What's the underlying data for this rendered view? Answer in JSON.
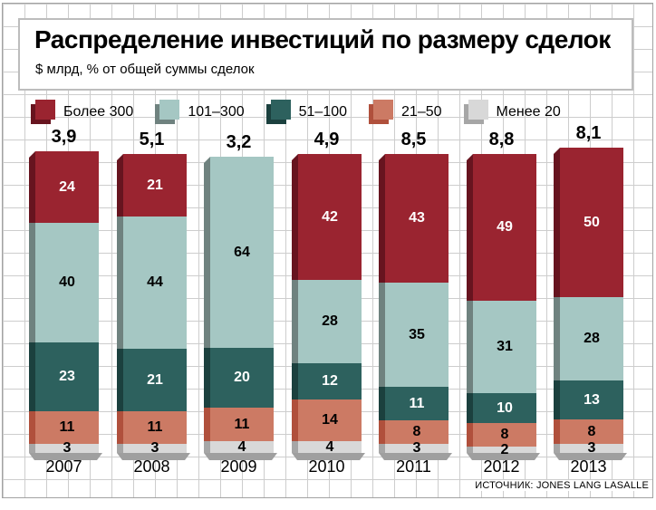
{
  "title": "Распределение инвестиций по размеру сделок",
  "subtitle": "$ млрд, % от общей суммы сделок",
  "source": "ИСТОЧНИК: JONES LANG LASALLE",
  "colors": {
    "grid_line": "#cdcdcd",
    "grid_border": "#a2a2a2",
    "flap_gray": "#9f9f9f",
    "title_box_border": "#bdbdbd"
  },
  "chart_data": {
    "type": "bar",
    "stacked": true,
    "title": "Распределение инвестиций по размеру сделок",
    "subtitle": "$ млрд, % от общей суммы сделок",
    "legend_position": "top",
    "grid": true,
    "categories": [
      "2007",
      "2008",
      "2009",
      "2010",
      "2011",
      "2012",
      "2013"
    ],
    "totals_billion_usd": [
      "3,9",
      "5,1",
      "3,2",
      "4,9",
      "8,5",
      "8,8",
      "8,1"
    ],
    "value_unit": "% от общей суммы сделок",
    "series": [
      {
        "name": "Более 300",
        "color": "#9a2430",
        "bevel": "#67141f",
        "text": "#ffffff",
        "values": [
          24,
          21,
          0,
          42,
          43,
          49,
          50
        ]
      },
      {
        "name": "101–300",
        "color": "#a5c7c3",
        "bevel": "#6f827f",
        "text": "#000000",
        "values": [
          40,
          44,
          64,
          28,
          35,
          31,
          28
        ]
      },
      {
        "name": "51–100",
        "color": "#2d615e",
        "bevel": "#1b403e",
        "text": "#ffffff",
        "values": [
          23,
          21,
          20,
          12,
          11,
          10,
          13
        ]
      },
      {
        "name": "21–50",
        "color": "#cc7a64",
        "bevel": "#b0503c",
        "text": "#000000",
        "values": [
          11,
          11,
          11,
          14,
          8,
          8,
          8
        ]
      },
      {
        "name": "Менее 20",
        "color": "#d8d8d8",
        "bevel": "#a6a6a6",
        "text": "#000000",
        "values": [
          3,
          3,
          4,
          4,
          3,
          2,
          3
        ]
      }
    ]
  }
}
